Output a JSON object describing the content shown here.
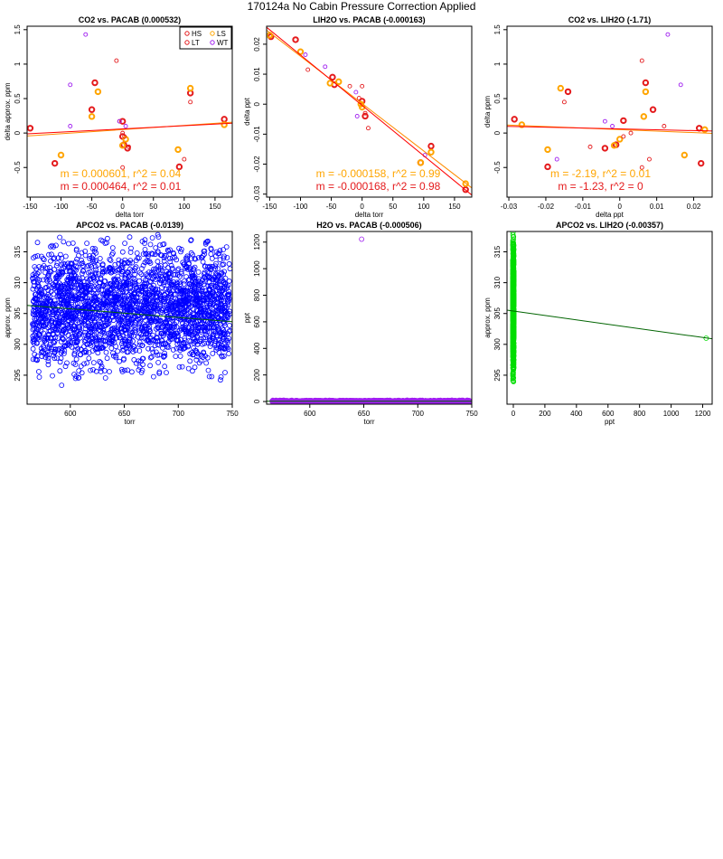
{
  "page": {
    "title": "170124a   No Cabin Pressure Correction Applied"
  },
  "colors": {
    "HS": "#e41a1c",
    "LS": "#ffa500",
    "LT": "#e41a1c",
    "WT": "#a020f0",
    "blue": "#0000ff",
    "purple": "#a020f0",
    "green": "#00dd00",
    "fit_green": "#006400",
    "line_orange": "#ff8c00",
    "line_red": "#ff0000"
  },
  "chart_data": [
    {
      "type": "scatter",
      "title": "CO2 vs. PACAB (0.000532)",
      "xlabel": "delta torr",
      "ylabel": "delta approx. ppm",
      "xlim": [
        -155,
        178
      ],
      "ylim": [
        -0.93,
        1.55
      ],
      "xticks": [
        -150,
        -100,
        -50,
        0,
        50,
        100,
        150
      ],
      "yticks": [
        -0.5,
        0.0,
        0.5,
        1.0,
        1.5
      ],
      "legend": {
        "placement": "top-right",
        "entries": [
          "HS",
          "LS",
          "LT",
          "WT"
        ]
      },
      "series": [
        {
          "name": "HS",
          "style": "thick",
          "points": [
            [
              -150,
              0.07
            ],
            [
              -110,
              -0.44
            ],
            [
              -45,
              0.73
            ],
            [
              -50,
              0.34
            ],
            [
              0,
              0.17
            ],
            [
              0,
              -0.05
            ],
            [
              2,
              -0.17
            ],
            [
              8,
              -0.22
            ],
            [
              92,
              -0.49
            ],
            [
              110,
              0.58
            ],
            [
              165,
              0.2
            ]
          ]
        },
        {
          "name": "LS",
          "style": "thick",
          "points": [
            [
              -100,
              -0.32
            ],
            [
              -50,
              0.24
            ],
            [
              -40,
              0.6
            ],
            [
              0,
              -0.18
            ],
            [
              5,
              -0.09
            ],
            [
              90,
              -0.24
            ],
            [
              110,
              0.65
            ],
            [
              165,
              0.12
            ]
          ]
        },
        {
          "name": "LT",
          "style": "thin",
          "points": [
            [
              -10,
              1.05
            ],
            [
              -5,
              0.17
            ],
            [
              0,
              -0.5
            ],
            [
              0,
              0.0
            ],
            [
              3,
              -0.05
            ],
            [
              10,
              -0.2
            ],
            [
              100,
              -0.38
            ],
            [
              110,
              0.45
            ]
          ]
        },
        {
          "name": "WT",
          "style": "thin",
          "points": [
            [
              -60,
              1.43
            ],
            [
              -85,
              0.7
            ],
            [
              -5,
              0.17
            ],
            [
              5,
              0.1
            ],
            [
              -85,
              0.1
            ]
          ]
        }
      ],
      "fits": [
        {
          "name": "LS",
          "slope": 0.000601,
          "intercept": 0.05,
          "label": "m = 0.000601, r^2 = 0.04"
        },
        {
          "name": "HS",
          "slope": 0.000464,
          "intercept": 0.06,
          "label": "m = 0.000464, r^2 = 0.01"
        }
      ]
    },
    {
      "type": "scatter",
      "title": "LIH2O vs. PACAB (-0.000163)",
      "xlabel": "delta torr",
      "ylabel": "delta ppt",
      "xlim": [
        -155,
        178
      ],
      "ylim": [
        -0.031,
        0.026
      ],
      "xticks": [
        -150,
        -100,
        -50,
        0,
        50,
        100,
        150
      ],
      "yticks": [
        -0.03,
        -0.02,
        -0.01,
        0.0,
        0.01,
        0.02
      ],
      "series": [
        {
          "name": "HS",
          "style": "thick",
          "points": [
            [
              -148,
              0.0225
            ],
            [
              -108,
              0.0215
            ],
            [
              -48,
              0.009
            ],
            [
              -45,
              0.0065
            ],
            [
              0,
              0.001
            ],
            [
              5,
              -0.004
            ],
            [
              95,
              -0.0195
            ],
            [
              112,
              -0.014
            ],
            [
              168,
              -0.0285
            ]
          ]
        },
        {
          "name": "LS",
          "style": "thick",
          "points": [
            [
              -150,
              0.023
            ],
            [
              -100,
              0.0175
            ],
            [
              -52,
              0.007
            ],
            [
              -38,
              0.0075
            ],
            [
              -2,
              0.0
            ],
            [
              0,
              -0.001
            ],
            [
              95,
              -0.0195
            ],
            [
              112,
              -0.016
            ],
            [
              168,
              -0.0265
            ]
          ]
        },
        {
          "name": "LT",
          "style": "thin",
          "points": [
            [
              -88,
              0.0115
            ],
            [
              -20,
              0.006
            ],
            [
              0,
              0.006
            ],
            [
              5,
              -0.003
            ],
            [
              10,
              -0.008
            ],
            [
              -5,
              0.002
            ]
          ]
        },
        {
          "name": "WT",
          "style": "thin",
          "points": [
            [
              -92,
              0.0165
            ],
            [
              -60,
              0.0125
            ],
            [
              -8,
              -0.004
            ],
            [
              -10,
              0.004
            ],
            [
              102,
              -0.017
            ]
          ]
        }
      ],
      "fits": [
        {
          "name": "LS",
          "slope": -0.000158,
          "intercept": 0.0002,
          "label": "m = -0.000158, r^2 = 0.99"
        },
        {
          "name": "HS",
          "slope": -0.000168,
          "intercept": -0.0004,
          "label": "m = -0.000168, r^2 = 0.98"
        }
      ]
    },
    {
      "type": "scatter",
      "title": "CO2 vs. LIH2O (-1.71)",
      "xlabel": "delta ppt",
      "ylabel": "delta ppm",
      "xlim": [
        -0.0305,
        0.025
      ],
      "ylim": [
        -0.93,
        1.55
      ],
      "xticks": [
        -0.03,
        -0.02,
        -0.01,
        0.0,
        0.01,
        0.02
      ],
      "yticks": [
        -0.5,
        0.0,
        0.5,
        1.0,
        1.5
      ],
      "series": [
        {
          "name": "HS",
          "style": "thick",
          "points": [
            [
              -0.0285,
              0.2
            ],
            [
              -0.0195,
              -0.49
            ],
            [
              -0.014,
              0.6
            ],
            [
              -0.004,
              -0.22
            ],
            [
              -0.001,
              -0.17
            ],
            [
              0.001,
              0.18
            ],
            [
              0.007,
              0.73
            ],
            [
              0.009,
              0.34
            ],
            [
              0.0215,
              0.07
            ],
            [
              0.022,
              -0.44
            ]
          ]
        },
        {
          "name": "LS",
          "style": "thick",
          "points": [
            [
              -0.0265,
              0.12
            ],
            [
              -0.0195,
              -0.24
            ],
            [
              -0.016,
              0.65
            ],
            [
              -0.0015,
              -0.18
            ],
            [
              0.0,
              -0.09
            ],
            [
              0.0065,
              0.24
            ],
            [
              0.007,
              0.6
            ],
            [
              0.0175,
              -0.32
            ],
            [
              0.023,
              0.05
            ]
          ]
        },
        {
          "name": "LT",
          "style": "thin",
          "points": [
            [
              -0.015,
              0.45
            ],
            [
              0.001,
              -0.05
            ],
            [
              0.003,
              0.0
            ],
            [
              0.006,
              1.05
            ],
            [
              0.006,
              -0.5
            ],
            [
              0.008,
              -0.38
            ],
            [
              0.012,
              0.1
            ],
            [
              -0.008,
              -0.2
            ]
          ]
        },
        {
          "name": "WT",
          "style": "thin",
          "points": [
            [
              -0.017,
              -0.38
            ],
            [
              -0.004,
              0.17
            ],
            [
              -0.002,
              0.1
            ],
            [
              0.013,
              1.43
            ],
            [
              0.0165,
              0.7
            ]
          ]
        }
      ],
      "fits": [
        {
          "name": "LS",
          "slope": -2.19,
          "intercept": 0.05,
          "label": "m = -2.19, r^2 = 0.01"
        },
        {
          "name": "HS",
          "slope": -1.23,
          "intercept": 0.06,
          "label": "m = -1.23, r^2 = 0"
        }
      ]
    },
    {
      "type": "scatter",
      "title": "APCO2 vs. PACAB (-0.0139)",
      "xlabel": "torr",
      "ylabel": "approx. ppm",
      "xlim": [
        560,
        750
      ],
      "ylim": [
        290.3,
        318.3
      ],
      "xticks": [
        600,
        650,
        700,
        750
      ],
      "yticks": [
        295,
        300,
        305,
        310,
        315
      ],
      "dense_cloud": {
        "n": 2600,
        "x_range": [
          565,
          748
        ],
        "y_center": 306,
        "y_spread": 4.5,
        "color_key": "blue"
      },
      "fits": [
        {
          "slope": -0.0139,
          "intercept": 314.1,
          "color_key": "fit_green"
        }
      ]
    },
    {
      "type": "scatter",
      "title": "H2O vs. PACAB (-0.000506)",
      "xlabel": "torr",
      "ylabel": "ppt",
      "xlim": [
        560,
        750
      ],
      "ylim": [
        -20,
        1280
      ],
      "xticks": [
        600,
        650,
        700,
        750
      ],
      "yticks": [
        0,
        200,
        400,
        600,
        800,
        1000,
        1200
      ],
      "dense_cloud": {
        "n": 2200,
        "x_range": [
          565,
          748
        ],
        "y_center": 2,
        "y_spread": 3,
        "color_key": "purple"
      },
      "outliers": [
        [
          648,
          1222
        ]
      ],
      "fits": [
        {
          "slope": -0.000506,
          "intercept": 2.5,
          "color_key": "fit_green"
        }
      ]
    },
    {
      "type": "scatter",
      "title": "APCO2 vs. LIH2O (-0.00357)",
      "xlabel": "ppt",
      "ylabel": "approx. ppm",
      "xlim": [
        -40,
        1260
      ],
      "ylim": [
        290.3,
        318.3
      ],
      "xticks": [
        0,
        200,
        400,
        600,
        800,
        1000,
        1200
      ],
      "yticks": [
        295,
        300,
        305,
        310,
        315
      ],
      "dense_cloud": {
        "n": 1400,
        "x_range": [
          -3,
          3
        ],
        "y_center": 306,
        "y_spread": 4.5,
        "color_key": "green"
      },
      "outliers": [
        [
          1222,
          301
        ]
      ],
      "fits": [
        {
          "slope": -0.00357,
          "intercept": 305.4,
          "color_key": "fit_green"
        }
      ]
    }
  ]
}
